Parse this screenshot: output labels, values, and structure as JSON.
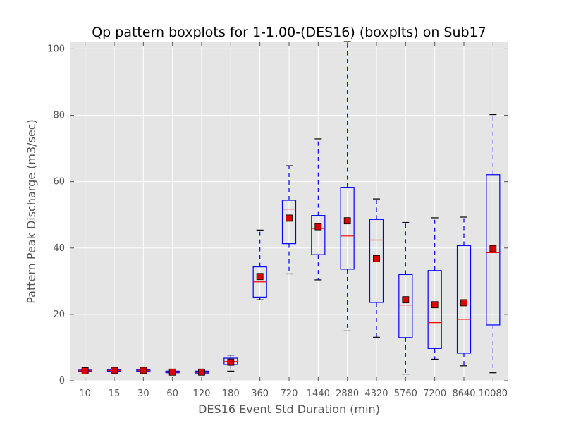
{
  "chart_data": {
    "type": "box",
    "title": "Qp pattern boxplots for 1-1.00-(DES16) (boxplts) on Sub17",
    "xlabel": "DES16 Event Std Duration (min)",
    "ylabel": "Pattern Peak Discharge (m3/sec)",
    "ylim": [
      0,
      102
    ],
    "yticks": [
      0,
      20,
      40,
      60,
      80,
      100
    ],
    "grid": true,
    "categories": [
      "10",
      "15",
      "30",
      "60",
      "120",
      "180",
      "360",
      "720",
      "1440",
      "2880",
      "4320",
      "5760",
      "7200",
      "8640",
      "10080"
    ],
    "boxes": [
      {
        "whisker_low": 2.6,
        "q1": 2.8,
        "median": 3.0,
        "q3": 3.2,
        "whisker_high": 3.4,
        "mean": 3.0
      },
      {
        "whisker_low": 2.8,
        "q1": 2.9,
        "median": 3.1,
        "q3": 3.3,
        "whisker_high": 3.4,
        "mean": 3.1
      },
      {
        "whisker_low": 2.7,
        "q1": 2.9,
        "median": 3.1,
        "q3": 3.3,
        "whisker_high": 3.6,
        "mean": 3.1
      },
      {
        "whisker_low": 2.2,
        "q1": 2.4,
        "median": 2.6,
        "q3": 2.9,
        "whisker_high": 3.0,
        "mean": 2.6
      },
      {
        "whisker_low": 2.1,
        "q1": 2.3,
        "median": 2.6,
        "q3": 2.9,
        "whisker_high": 3.2,
        "mean": 2.6
      },
      {
        "whisker_low": 2.9,
        "q1": 4.9,
        "median": 5.8,
        "q3": 6.8,
        "whisker_high": 7.7,
        "mean": 5.6
      },
      {
        "whisker_low": 24.4,
        "q1": 25.2,
        "median": 29.8,
        "q3": 34.3,
        "whisker_high": 45.4,
        "mean": 31.4
      },
      {
        "whisker_low": 32.2,
        "q1": 41.3,
        "median": 51.7,
        "q3": 54.4,
        "whisker_high": 64.8,
        "mean": 49.0
      },
      {
        "whisker_low": 30.4,
        "q1": 38.0,
        "median": 45.9,
        "q3": 49.8,
        "whisker_high": 72.9,
        "mean": 46.4
      },
      {
        "whisker_low": 15.0,
        "q1": 33.6,
        "median": 43.6,
        "q3": 58.3,
        "whisker_high": 102.2,
        "mean": 48.2
      },
      {
        "whisker_low": 13.1,
        "q1": 23.6,
        "median": 42.4,
        "q3": 48.6,
        "whisker_high": 54.8,
        "mean": 36.8
      },
      {
        "whisker_low": 2.0,
        "q1": 13.0,
        "median": 22.8,
        "q3": 32.0,
        "whisker_high": 47.7,
        "mean": 24.4
      },
      {
        "whisker_low": 6.5,
        "q1": 9.7,
        "median": 17.5,
        "q3": 33.2,
        "whisker_high": 49.1,
        "mean": 22.9
      },
      {
        "whisker_low": 4.5,
        "q1": 8.3,
        "median": 18.5,
        "q3": 40.7,
        "whisker_high": 49.3,
        "mean": 23.5
      },
      {
        "whisker_low": 2.4,
        "q1": 16.8,
        "median": 38.6,
        "q3": 62.1,
        "whisker_high": 80.2,
        "mean": 39.8
      }
    ],
    "colors": {
      "box": "#0000ff",
      "median": "#ff0000",
      "mean_fill": "#dd0000",
      "mean_edge": "#000000",
      "plot_bg": "#e5e5e5",
      "grid": "#ffffff",
      "axis_text": "#555555"
    }
  }
}
